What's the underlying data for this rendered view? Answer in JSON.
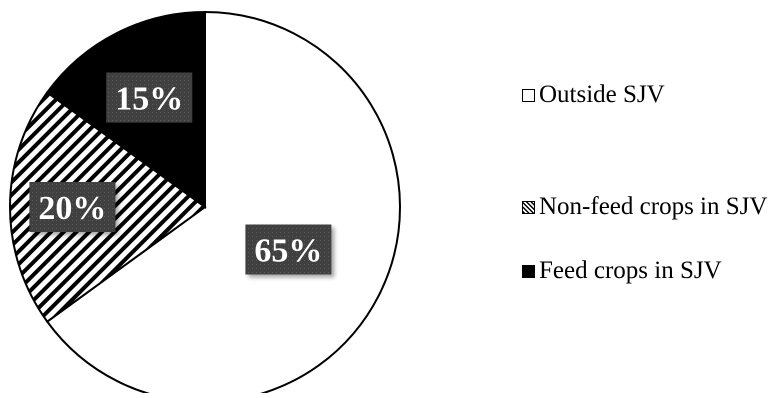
{
  "chart_data": {
    "type": "pie",
    "categories": [
      "Outside SJV",
      "Non-feed crops in SJV",
      "Feed crops in SJV"
    ],
    "values": [
      65,
      20,
      15
    ],
    "data_labels": [
      "65%",
      "20%",
      "15%"
    ],
    "fills": [
      "white",
      "diagonal-hatch",
      "black"
    ],
    "start_angle_deg": 0,
    "direction": "clockwise",
    "legend_position": "right",
    "label_box_color": "#404040",
    "label_text_color": "#ffffff"
  },
  "legend": {
    "items": [
      {
        "label": "Outside SJV"
      },
      {
        "label": "Non-feed crops in SJV"
      },
      {
        "label": "Feed crops in SJV"
      }
    ]
  }
}
